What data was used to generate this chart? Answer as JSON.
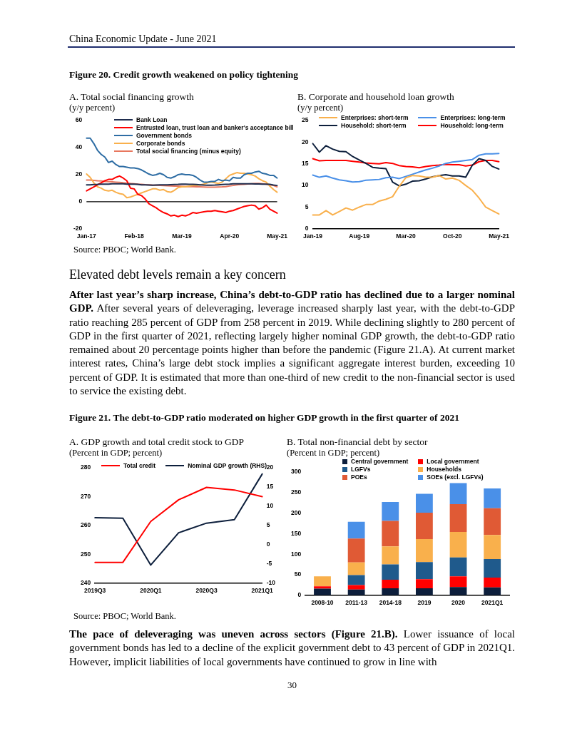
{
  "chart_data": [
    {
      "type": "other",
      "annotations": [
        "China Economic Update - June 2021",
        "Figure 20. Credit growth weakened on policy tightening"
      ]
    },
    {
      "type": "line",
      "title": "A. Total social financing growth",
      "subtitle": "(y/y percent)",
      "categories": [
        "Jan-17",
        null,
        null,
        null,
        null,
        null,
        null,
        null,
        null,
        null,
        null,
        null,
        null,
        "Feb-18",
        null,
        null,
        null,
        null,
        null,
        null,
        null,
        null,
        null,
        null,
        null,
        null,
        "Mar-19",
        null,
        null,
        null,
        null,
        null,
        null,
        null,
        null,
        null,
        null,
        null,
        null,
        "Apr-20",
        null,
        null,
        null,
        null,
        null,
        null,
        null,
        null,
        null,
        null,
        null,
        null,
        "May-21"
      ],
      "series": [
        {
          "name": "Bank Loan",
          "color": "#1f2d4e",
          "values": [
            12.5,
            12.5,
            12.7,
            12.8,
            13,
            13,
            13,
            13.2,
            13.2,
            13.2,
            13.2,
            13,
            13,
            13,
            12.8,
            12.5,
            12.4,
            12.3,
            12.2,
            12.3,
            12.4,
            12.5,
            12.5,
            12.6,
            12.7,
            12.8,
            13,
            13,
            12.9,
            12.8,
            12.7,
            12.5,
            12.3,
            12.2,
            12.2,
            12.3,
            12.5,
            12.7,
            12.9,
            13,
            13.2,
            13.2,
            13.3,
            13.3,
            13.2,
            13.2,
            13.1,
            13.1,
            13,
            13,
            12.8,
            12.3,
            12
          ]
        },
        {
          "name": "Entrusted loan, trust loan and banker's acceptance bill",
          "color": "#ff0000",
          "values": [
            8,
            9.5,
            11,
            12.5,
            14,
            15.5,
            16.5,
            16.5,
            18,
            19,
            17.5,
            15.5,
            10,
            9.5,
            5.5,
            4.5,
            2,
            -1.5,
            -3,
            -4.5,
            -6.5,
            -8,
            -9,
            -10.5,
            -10,
            -11,
            -10,
            -10.5,
            -9.5,
            -8,
            -8.5,
            -8,
            -7.5,
            -7,
            -7,
            -6.5,
            -7,
            -7.5,
            -8,
            -7,
            -6.5,
            -5.5,
            -4.5,
            -3.5,
            -3,
            -2.5,
            -3,
            -5.5,
            -4.5,
            -2.5,
            -5.5,
            -7,
            -8.5
          ]
        },
        {
          "name": "Government bonds",
          "color": "#2e6da4",
          "values": [
            47,
            47,
            43,
            38,
            35,
            33,
            29,
            30,
            27.5,
            26,
            26,
            25.5,
            25,
            25,
            24.5,
            23.5,
            22,
            20.5,
            19.5,
            20,
            21,
            20,
            18,
            17.5,
            18.5,
            20,
            20.5,
            20,
            20,
            19.5,
            18,
            16,
            14.5,
            14.5,
            15,
            15,
            16.5,
            15.5,
            16,
            15.5,
            18,
            17.5,
            17.5,
            20,
            21,
            21,
            22,
            22.5,
            21,
            20.5,
            19.5,
            19.5,
            17.5
          ]
        },
        {
          "name": "Corporate bonds",
          "color": "#f9b04c",
          "values": [
            20.5,
            18,
            14,
            11,
            10,
            8.5,
            8,
            8.5,
            7,
            6,
            5.5,
            3,
            3.5,
            4.5,
            5.5,
            6.5,
            7.5,
            8.5,
            9.5,
            9.5,
            8.5,
            9,
            7.5,
            7,
            8.5,
            10.5,
            11,
            11,
            11.5,
            12,
            12,
            12.5,
            13,
            14,
            14.5,
            14,
            13.5,
            14.5,
            17,
            19.5,
            20.5,
            21.5,
            21,
            21,
            20.5,
            20,
            19,
            17,
            15.5,
            14.5,
            11.5,
            9,
            7
          ]
        },
        {
          "name": "Total social financing (minus equity)",
          "color": "#e8775e",
          "values": [
            16,
            16,
            15.8,
            15.5,
            15.3,
            15,
            14.8,
            14.7,
            14.5,
            14.3,
            14,
            13.8,
            13.5,
            13.3,
            13,
            12.8,
            12.6,
            12.5,
            12.3,
            12.2,
            12,
            11.9,
            11.8,
            11.7,
            11.6,
            11.5,
            11.4,
            11.3,
            11.2,
            11.1,
            11,
            11,
            10.9,
            10.8,
            10.8,
            10.8,
            10.9,
            11,
            11.2,
            11.6,
            12,
            12.4,
            12.7,
            12.9,
            13.1,
            13.3,
            13.5,
            13.5,
            13.3,
            13,
            12.5,
            12,
            11
          ]
        }
      ],
      "ylim": [
        -20,
        60
      ],
      "yticks": [
        -20,
        0,
        20,
        40,
        60
      ],
      "ref_lines": [
        {
          "axis": "y",
          "value": 0,
          "color": "#000000"
        }
      ],
      "legend": "top"
    },
    {
      "type": "line",
      "title": "B. Corporate and household loan growth",
      "subtitle": "(y/y percent)",
      "categories": [
        "Jan-19",
        null,
        null,
        null,
        null,
        null,
        null,
        "Aug-19",
        null,
        null,
        null,
        null,
        null,
        null,
        "Mar-20",
        null,
        null,
        null,
        null,
        null,
        null,
        "Oct-20",
        null,
        null,
        null,
        null,
        null,
        null,
        "May-21"
      ],
      "series": [
        {
          "name": "Enterprises: short-term",
          "color": "#f9b04c",
          "values": [
            3.2,
            3.2,
            4.2,
            3.2,
            4,
            4.8,
            4.3,
            5,
            5.6,
            5.6,
            6.4,
            6.8,
            7.4,
            9.8,
            11.8,
            12.3,
            12.2,
            11.9,
            11.9,
            12.3,
            11.5,
            11.7,
            11.2,
            10,
            8.9,
            7.1,
            5,
            4.2,
            3.4
          ]
        },
        {
          "name": "Enterprises: long-term",
          "color": "#4a90e8",
          "values": [
            12.4,
            11.9,
            12.2,
            11.7,
            11.3,
            11.1,
            10.8,
            10.9,
            11.2,
            11.3,
            11.4,
            11.8,
            11.9,
            11.6,
            12.1,
            12.6,
            13.1,
            13.6,
            14,
            14.5,
            15.1,
            15.4,
            15.6,
            15.8,
            16,
            17,
            17.3,
            17.3,
            17.4
          ]
        },
        {
          "name": "Household: short-term",
          "color": "#0d1f3c",
          "values": [
            19.7,
            17.7,
            19.2,
            18.4,
            17.9,
            17.8,
            16.7,
            15.9,
            15.1,
            14.2,
            14,
            13.9,
            10.8,
            9.9,
            10.3,
            11,
            11.1,
            11.5,
            12,
            12.3,
            12.5,
            12.2,
            12.2,
            11.9,
            14.7,
            16.2,
            15.8,
            14.4,
            13.8
          ]
        },
        {
          "name": "Household: long-term",
          "color": "#ff0000",
          "values": [
            16.2,
            15.7,
            15.8,
            15.8,
            15.8,
            15.8,
            15.6,
            15.4,
            15.2,
            15.1,
            15,
            15.3,
            15.1,
            14.6,
            14.4,
            14.3,
            14.1,
            14.4,
            14.6,
            14.7,
            14.9,
            14.8,
            14.8,
            14.5,
            14.7,
            15.5,
            15.8,
            15.8,
            15.5
          ]
        }
      ],
      "ylim": [
        0,
        25
      ],
      "yticks": [
        0,
        5,
        10,
        15,
        20,
        25
      ],
      "legend": "top"
    },
    {
      "type": "other",
      "annotations": [
        "Source: PBOC; World Bank.",
        "Elevated debt levels remain a key concern",
        "After last year’s sharp increase, China’s debt-to-GDP ratio has declined due to a larger nominal GDP.",
        "After several years of deleveraging, leverage increased sharply last year, with the debt-to-GDP ratio reaching 285 percent of GDP from 258 percent in 2019. While declining slightly to 280 percent of GDP in the first quarter of 2021, reflecting largely higher nominal GDP growth, the debt-to-GDP ratio remained about 20 percentage points higher than before the pandemic (Figure 21.A). At current market interest rates, China’s large debt stock implies a significant aggregate interest burden, exceeding 10 percent of GDP. It is estimated that more than one-third of new credit to the non-financial sector is used to service the existing debt.",
        "Figure 21. The debt-to-GDP ratio moderated on higher GDP growth in the first quarter of 2021"
      ]
    },
    {
      "type": "line",
      "title": "A. GDP growth and total credit stock to GDP",
      "subtitle": "(Percent in GDP; percent)",
      "categories": [
        "2019Q3",
        null,
        "2020Q1",
        null,
        "2020Q3",
        null,
        "2021Q1"
      ],
      "series": [
        {
          "name": "Total credit",
          "color": "#ff0000",
          "values": [
            247.2,
            247.2,
            261.4,
            268.9,
            273.2,
            272.3,
            270
          ]
        },
        {
          "name": "Nominal GDP growth (RHS)",
          "color": "#0d1f3c",
          "axis": "y2",
          "values": [
            7,
            6.9,
            -5.3,
            3.1,
            5.6,
            6.5,
            18.4
          ]
        }
      ],
      "ylim": [
        240,
        280
      ],
      "yticks": [
        240,
        250,
        260,
        270,
        280
      ],
      "y2lim": [
        -10,
        20
      ],
      "y2ticks": [
        -10,
        -5,
        0,
        5,
        10,
        15,
        20
      ],
      "legend": "top"
    },
    {
      "type": "bar",
      "stacked": true,
      "title": "B. Total non-financial debt by sector",
      "subtitle": "(Percent in GDP; percent)",
      "categories": [
        "2008-10",
        "2011-13",
        "2014-18",
        "2019",
        "2020",
        "2021Q1"
      ],
      "series": [
        {
          "name": "Central government",
          "color": "#0d1f3c",
          "values": [
            16,
            14,
            17,
            17,
            20,
            19
          ]
        },
        {
          "name": "Local government",
          "color": "#ff0000",
          "values": [
            6,
            11,
            21,
            22,
            26,
            24
          ]
        },
        {
          "name": "LGFVs",
          "color": "#1f5a8c",
          "values": [
            0,
            24,
            37,
            42,
            46,
            45
          ]
        },
        {
          "name": "Households",
          "color": "#f9b04c",
          "values": [
            24,
            31,
            44,
            56,
            62,
            59
          ]
        },
        {
          "name": "POEs",
          "color": "#e05a35",
          "values": [
            0,
            58,
            62,
            64,
            68,
            65
          ]
        },
        {
          "name": "SOEs (excl. LGFVs)",
          "color": "#4a90e8",
          "values": [
            0,
            41,
            46,
            46,
            51,
            48
          ]
        }
      ],
      "ylim": [
        0,
        300
      ],
      "yticks": [
        0,
        50,
        100,
        150,
        200,
        250,
        300
      ],
      "legend": "top"
    },
    {
      "type": "other",
      "annotations": [
        "Source: PBOC; World Bank.",
        "The pace of deleveraging was uneven across sectors (Figure 21.B).",
        "Lower issuance of local government bonds has led to a decline of the explicit government debt to 43 percent of GDP in 2021Q1. However, implicit liabilities of local governments have continued to grow in line with",
        "30"
      ]
    }
  ]
}
